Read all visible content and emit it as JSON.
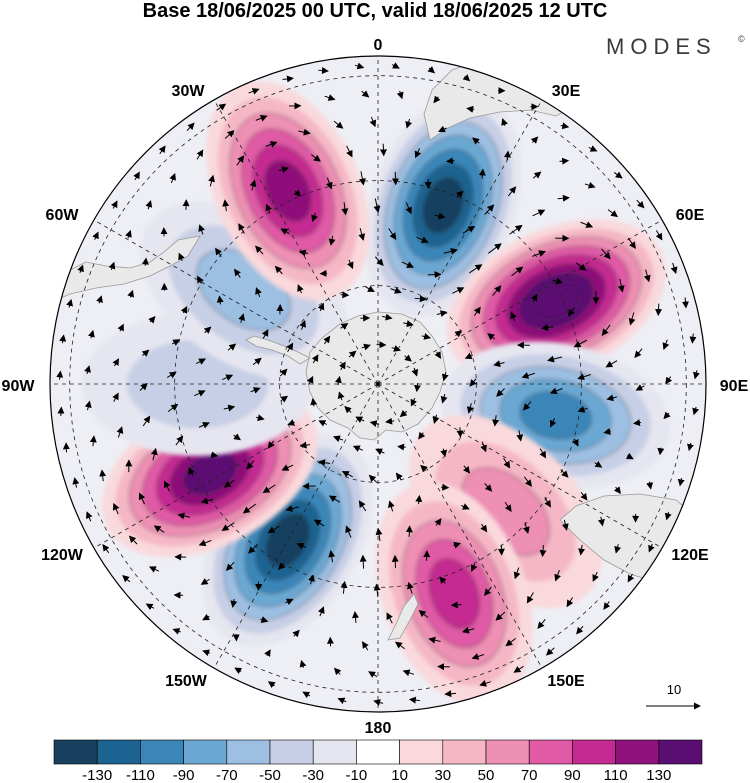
{
  "title": "Base 18/06/2025 00 UTC, valid 18/06/2025 12 UTC",
  "brand": {
    "name": "MODES",
    "mark": "©"
  },
  "longitude_labels": {
    "top": "0",
    "upper_right_1": "30E",
    "upper_right_2": "60E",
    "right": "90E",
    "lower_right_1": "120E",
    "lower_right_2": "150E",
    "bottom": "180",
    "lower_left_2": "150W",
    "lower_left_1": "120W",
    "left": "90W",
    "upper_left_2": "60W",
    "upper_left_1": "30W"
  },
  "reference_vector": {
    "label": "10"
  },
  "colorbar": {
    "colors": [
      "#17405e",
      "#1d6391",
      "#3a86b9",
      "#6aa8d3",
      "#9dbfe2",
      "#c7cfe6",
      "#e6e6f0",
      "#ffffff",
      "#f9d9dc",
      "#f5b7c6",
      "#ee8fb4",
      "#e05aa6",
      "#c42a91",
      "#8f117a",
      "#5b0e72"
    ],
    "ticks": [
      "-130",
      "-110",
      "-90",
      "-70",
      "-50",
      "-30",
      "-10",
      "10",
      "30",
      "50",
      "70",
      "90",
      "110",
      "130"
    ]
  },
  "map_features": {
    "projection": "south-polar-stereographic",
    "land_color": "#e9e9e9",
    "coast_color": "#9a9a9a",
    "anomaly_cells": [
      {
        "lon": 20,
        "r": 0.58,
        "value": -115
      },
      {
        "lon": 65,
        "r": 0.6,
        "value": 132
      },
      {
        "lon": 100,
        "r": 0.55,
        "value": -80
      },
      {
        "lon": 135,
        "r": 0.55,
        "value": 35
      },
      {
        "lon": 160,
        "r": 0.68,
        "value": 85
      },
      {
        "lon": -150,
        "r": 0.55,
        "value": -115
      },
      {
        "lon": -118,
        "r": 0.58,
        "value": 118
      },
      {
        "lon": -90,
        "r": 0.55,
        "value": -25
      },
      {
        "lon": -55,
        "r": 0.5,
        "value": -40
      },
      {
        "lon": -25,
        "r": 0.65,
        "value": 95
      }
    ]
  }
}
